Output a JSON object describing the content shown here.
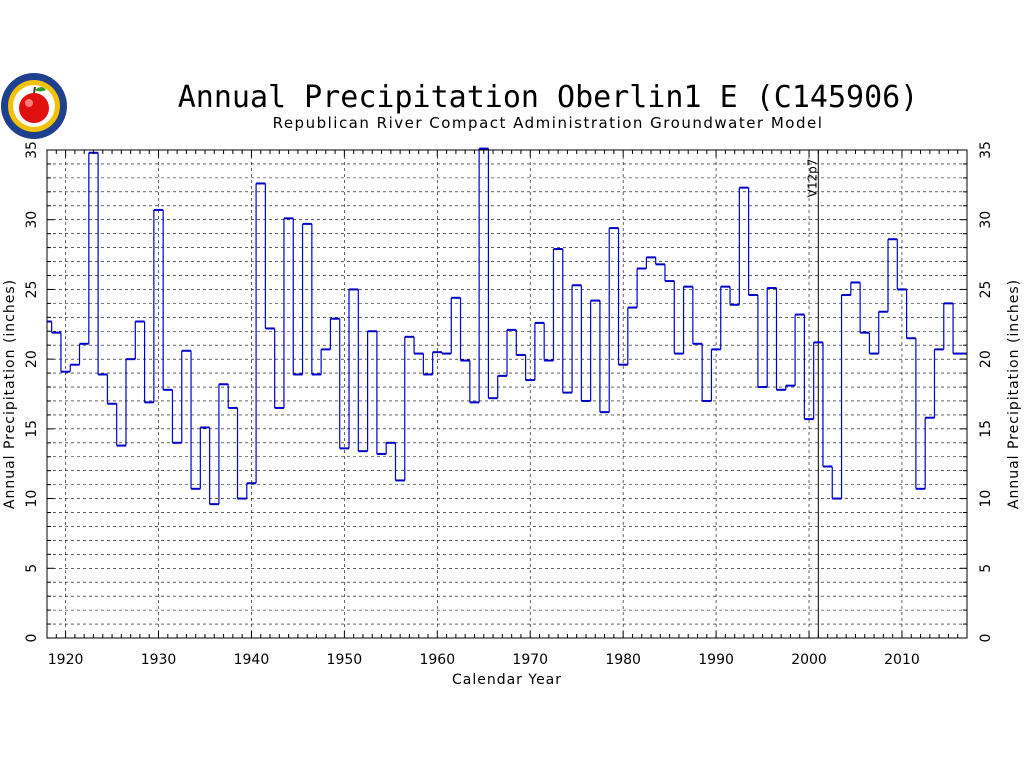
{
  "chart_data": {
    "type": "line",
    "style": "step",
    "title": "Annual Precipitation Oberlin1 E (C145906)",
    "subtitle": "Republican River Compact Administration Groundwater Model",
    "xlabel": "Calendar Year",
    "ylabel": "Annual Precipitation (inches)",
    "xlim": [
      1918,
      2017
    ],
    "ylim": [
      0,
      35
    ],
    "xticks": [
      1920,
      1930,
      1940,
      1950,
      1960,
      1970,
      1980,
      1990,
      2000,
      2010
    ],
    "yticks": [
      0,
      5,
      10,
      15,
      20,
      25,
      30,
      35
    ],
    "grid": true,
    "line_color": "#0000cc",
    "marker_line": {
      "x": 2001,
      "label": "V12p7"
    },
    "x": [
      1918,
      1919,
      1920,
      1921,
      1922,
      1923,
      1924,
      1925,
      1926,
      1927,
      1928,
      1929,
      1930,
      1931,
      1932,
      1933,
      1934,
      1935,
      1936,
      1937,
      1938,
      1939,
      1940,
      1941,
      1942,
      1943,
      1944,
      1945,
      1946,
      1947,
      1948,
      1949,
      1950,
      1951,
      1952,
      1953,
      1954,
      1955,
      1956,
      1957,
      1958,
      1959,
      1960,
      1961,
      1962,
      1963,
      1964,
      1965,
      1966,
      1967,
      1968,
      1969,
      1970,
      1971,
      1972,
      1973,
      1974,
      1975,
      1976,
      1977,
      1978,
      1979,
      1980,
      1981,
      1982,
      1983,
      1984,
      1985,
      1986,
      1987,
      1988,
      1989,
      1990,
      1991,
      1992,
      1993,
      1994,
      1995,
      1996,
      1997,
      1998,
      1999,
      2000,
      2001,
      2002,
      2003,
      2004,
      2005,
      2006,
      2007,
      2008,
      2009,
      2010,
      2011,
      2012,
      2013,
      2014,
      2015,
      2016
    ],
    "values": [
      22.7,
      21.9,
      19.1,
      19.6,
      21.1,
      34.8,
      18.9,
      16.8,
      13.8,
      20.0,
      22.7,
      16.9,
      30.7,
      17.8,
      14.0,
      20.6,
      10.7,
      15.1,
      9.6,
      18.2,
      16.5,
      10.0,
      11.1,
      32.6,
      22.2,
      16.5,
      30.1,
      18.9,
      29.7,
      18.9,
      20.7,
      22.9,
      13.6,
      25.0,
      13.4,
      22.0,
      13.2,
      14.0,
      11.3,
      21.6,
      20.4,
      18.9,
      20.5,
      20.4,
      24.4,
      19.9,
      16.9,
      35.1,
      17.2,
      18.8,
      22.1,
      20.3,
      18.5,
      22.6,
      19.9,
      27.9,
      17.6,
      25.3,
      17.0,
      24.2,
      16.2,
      29.4,
      19.6,
      23.7,
      26.5,
      27.3,
      26.8,
      25.6,
      20.4,
      25.2,
      21.1,
      17.0,
      20.7,
      25.2,
      23.9,
      32.3,
      24.6,
      18.0,
      25.1,
      17.8,
      18.1,
      23.2,
      15.7,
      21.2,
      12.3,
      10.0,
      24.6,
      25.5,
      21.9,
      20.4,
      23.4,
      28.6,
      25.0,
      21.5,
      10.7,
      15.8,
      20.7,
      24.0,
      20.4
    ]
  }
}
